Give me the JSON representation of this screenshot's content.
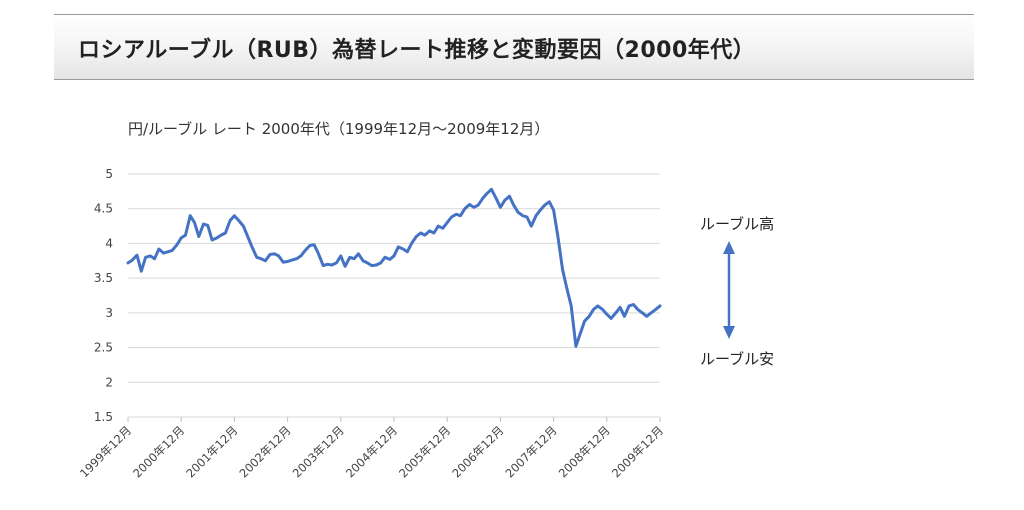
{
  "header": {
    "title": "ロシアルーブル（RUB）為替レート推移と変動要因（2000年代）"
  },
  "chart_data": {
    "type": "line",
    "title": "円/ルーブル レート 2000年代（1999年12月～2009年12月）",
    "xlabel": "",
    "ylabel": "",
    "ylim": [
      1.5,
      5
    ],
    "y_ticks": [
      "5",
      "4.5",
      "4",
      "3.5",
      "3",
      "2.5",
      "2",
      "1.5"
    ],
    "y_tick_values": [
      5,
      4.5,
      4,
      3.5,
      3,
      2.5,
      2,
      1.5
    ],
    "x_tick_labels": [
      "1999年12月",
      "2000年12月",
      "2001年12月",
      "2002年12月",
      "2003年12月",
      "2004年12月",
      "2005年12月",
      "2006年12月",
      "2007年12月",
      "2008年12月",
      "2009年12月"
    ],
    "grid": "horizontal",
    "line_color": "#4472c4",
    "series": [
      {
        "x_years": [
          0,
          0.08,
          0.17,
          0.25,
          0.33,
          0.42,
          0.5,
          0.58,
          0.67,
          0.75,
          0.83,
          0.92,
          1.0,
          1.08,
          1.17,
          1.25,
          1.33,
          1.42,
          1.5,
          1.58,
          1.67,
          1.75,
          1.83,
          1.92,
          2.0,
          2.08,
          2.17,
          2.25,
          2.33,
          2.42,
          2.5,
          2.58,
          2.67,
          2.75,
          2.83,
          2.92,
          3.0,
          3.08,
          3.17,
          3.25,
          3.33,
          3.42,
          3.5,
          3.58,
          3.67,
          3.75,
          3.83,
          3.92,
          4.0,
          4.08,
          4.17,
          4.25,
          4.33,
          4.42,
          4.5,
          4.58,
          4.67,
          4.75,
          4.83,
          4.92,
          5.0,
          5.08,
          5.17,
          5.25,
          5.33,
          5.42,
          5.5,
          5.58,
          5.67,
          5.75,
          5.83,
          5.92,
          6.0,
          6.08,
          6.17,
          6.25,
          6.33,
          6.42,
          6.5,
          6.58,
          6.67,
          6.75,
          6.83,
          6.92,
          7.0,
          7.08,
          7.17,
          7.25,
          7.33,
          7.42,
          7.5,
          7.58,
          7.67,
          7.75,
          7.83,
          7.92,
          8.0,
          8.08,
          8.17,
          8.25,
          8.33,
          8.42,
          8.5,
          8.58,
          8.67,
          8.75,
          8.83,
          8.92,
          9.0,
          9.08,
          9.17,
          9.25,
          9.33,
          9.42,
          9.5,
          9.58,
          9.67,
          9.75,
          9.83,
          9.92,
          10.0
        ],
        "values": [
          3.72,
          3.76,
          3.83,
          3.6,
          3.8,
          3.82,
          3.78,
          3.92,
          3.86,
          3.88,
          3.9,
          3.98,
          4.08,
          4.12,
          4.4,
          4.3,
          4.1,
          4.28,
          4.26,
          4.05,
          4.08,
          4.12,
          4.15,
          4.33,
          4.4,
          4.33,
          4.25,
          4.1,
          3.95,
          3.8,
          3.78,
          3.75,
          3.84,
          3.85,
          3.82,
          3.73,
          3.74,
          3.76,
          3.78,
          3.82,
          3.9,
          3.97,
          3.98,
          3.85,
          3.68,
          3.7,
          3.69,
          3.72,
          3.82,
          3.67,
          3.8,
          3.78,
          3.85,
          3.75,
          3.72,
          3.68,
          3.69,
          3.72,
          3.8,
          3.77,
          3.82,
          3.95,
          3.92,
          3.88,
          4.0,
          4.1,
          4.15,
          4.12,
          4.18,
          4.15,
          4.25,
          4.22,
          4.3,
          4.38,
          4.42,
          4.4,
          4.5,
          4.56,
          4.52,
          4.55,
          4.65,
          4.72,
          4.78,
          4.65,
          4.52,
          4.62,
          4.68,
          4.55,
          4.45,
          4.4,
          4.38,
          4.25,
          4.4,
          4.48,
          4.55,
          4.6,
          4.48,
          4.1,
          3.62,
          3.35,
          3.1,
          2.52,
          2.7,
          2.88,
          2.95,
          3.05,
          3.1,
          3.05,
          2.98,
          2.92,
          3.0,
          3.08,
          2.95,
          3.1,
          3.12,
          3.05,
          3.0,
          2.95,
          3.0,
          3.05,
          3.1
        ]
      }
    ],
    "annotations": {
      "top": "ルーブル高",
      "bottom": "ルーブル安"
    }
  }
}
